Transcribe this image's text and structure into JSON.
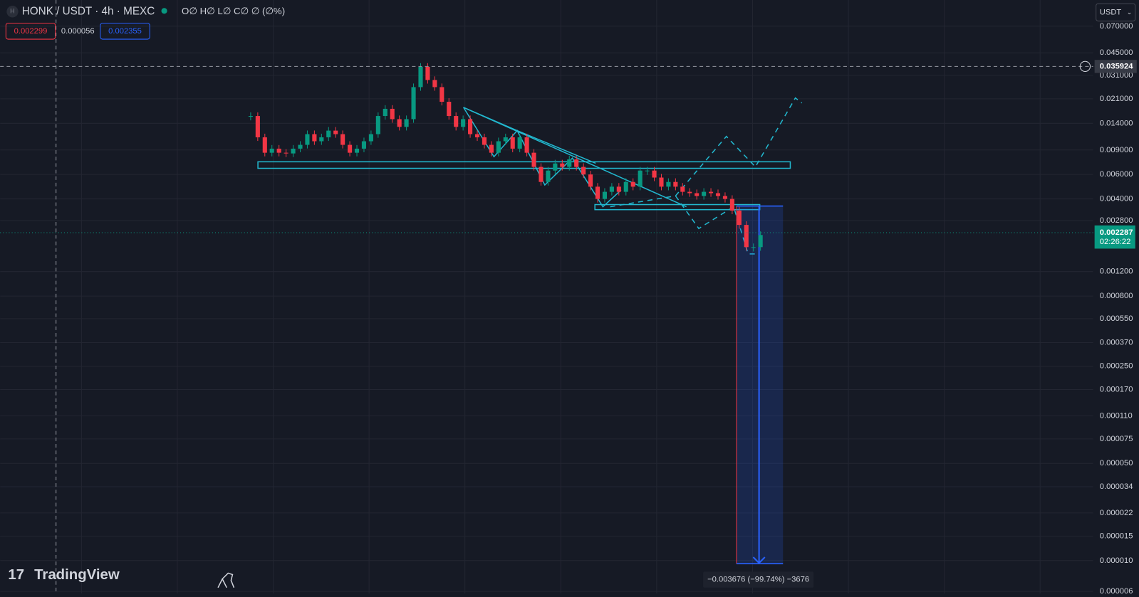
{
  "header": {
    "symbol_icon": "H",
    "symbol": "HONK / USDT · 4h · MEXC",
    "ohlc": "O∅ H∅ L∅ C∅ ∅ (∅%)",
    "bid": 0.002299,
    "spread": 5.6e-05,
    "ask": 0.002355,
    "currency": "USDT"
  },
  "chart_data": {
    "type": "candlestick",
    "log_scale": true,
    "grid": true,
    "ylim": [
      5.8e-06,
      0.108
    ],
    "yticks": [
      {
        "value": 0.07,
        "label": "0.070000"
      },
      {
        "value": 0.045,
        "label": "0.045000"
      },
      {
        "value": 0.031,
        "label": "0.031000"
      },
      {
        "value": 0.021,
        "label": "0.021000"
      },
      {
        "value": 0.014,
        "label": "0.014000"
      },
      {
        "value": 0.009,
        "label": "0.009000"
      },
      {
        "value": 0.006,
        "label": "0.006000"
      },
      {
        "value": 0.004,
        "label": "0.004000"
      },
      {
        "value": 0.0028,
        "label": "0.002800"
      },
      {
        "value": 0.0012,
        "label": "0.001200"
      },
      {
        "value": 0.0008,
        "label": "0.000800"
      },
      {
        "value": 0.00055,
        "label": "0.000550"
      },
      {
        "value": 0.00037,
        "label": "0.000370"
      },
      {
        "value": 0.00025,
        "label": "0.000250"
      },
      {
        "value": 0.00017,
        "label": "0.000170"
      },
      {
        "value": 0.00011,
        "label": "0.000110"
      },
      {
        "value": 7.5e-05,
        "label": "0.000075"
      },
      {
        "value": 5e-05,
        "label": "0.000050"
      },
      {
        "value": 3.4e-05,
        "label": "0.000034"
      },
      {
        "value": 2.2e-05,
        "label": "0.000022"
      },
      {
        "value": 1.5e-05,
        "label": "0.000015"
      },
      {
        "value": 1e-05,
        "label": "0.000010"
      },
      {
        "value": 6e-06,
        "label": "0.000006"
      }
    ],
    "closes": [
      0.0158,
      0.0111,
      0.0086,
      0.0092,
      0.0086,
      0.0085,
      0.0092,
      0.0098,
      0.0117,
      0.0104,
      0.0111,
      0.0124,
      0.0117,
      0.0098,
      0.0086,
      0.0092,
      0.0104,
      0.0117,
      0.0158,
      0.0178,
      0.015,
      0.0132,
      0.015,
      0.0255,
      0.0357,
      0.0287,
      0.0255,
      0.02,
      0.0158,
      0.0132,
      0.015,
      0.0117,
      0.0111,
      0.0098,
      0.0086,
      0.0104,
      0.0111,
      0.0092,
      0.0111,
      0.0086,
      0.0068,
      0.0053,
      0.0064,
      0.0072,
      0.0068,
      0.0077,
      0.0068,
      0.006,
      0.0049,
      0.004,
      0.0045,
      0.0049,
      0.0045,
      0.0053,
      0.0049,
      0.0064,
      0.0064,
      0.0057,
      0.0049,
      0.0053,
      0.0049,
      0.0045,
      0.0044,
      0.0042,
      0.0045,
      0.0044,
      0.0042,
      0.004,
      0.0033,
      0.0026,
      0.0018,
      0.0018,
      0.0022
    ],
    "up_color": "#089981",
    "down_color": "#f23645",
    "crosshair_price": 0.035924,
    "current_price": 0.002287,
    "countdown": "02:26:22",
    "measure_label": "−0.003676 (−99.74%) −3676"
  },
  "footer": {
    "logo": "TradingView"
  }
}
